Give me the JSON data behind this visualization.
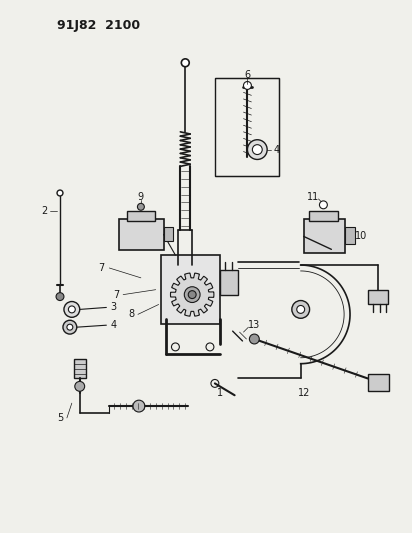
{
  "title": "91J82 2100",
  "background_color": "#f0f0eb",
  "line_color": "#1a1a1a",
  "figure_width": 4.12,
  "figure_height": 5.33,
  "dpi": 100
}
